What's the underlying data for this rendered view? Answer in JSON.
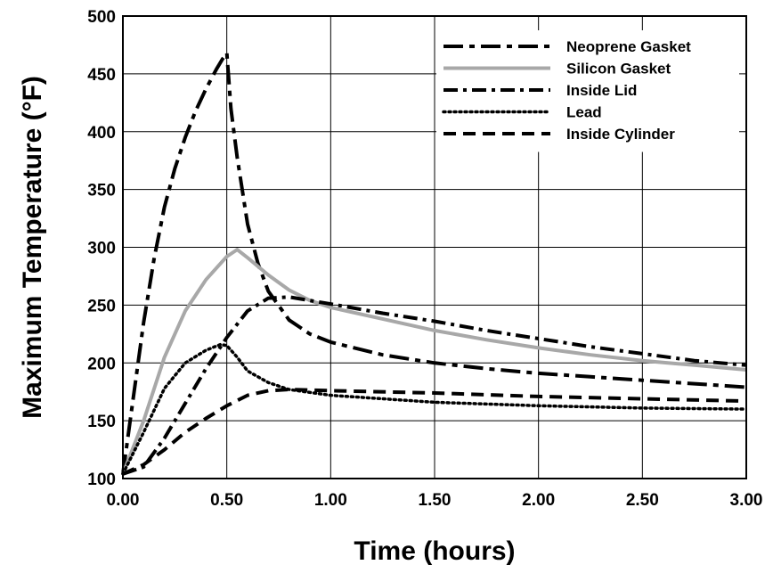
{
  "chart_data": {
    "type": "line",
    "xlabel": "Time (hours)",
    "ylabel": "Maximum Temperature (°F)",
    "xlim": [
      0,
      3
    ],
    "ylim": [
      100,
      500
    ],
    "xticks": [
      0,
      0.5,
      1.0,
      1.5,
      2.0,
      2.5,
      3.0
    ],
    "xtick_labels": [
      "0.00",
      "0.50",
      "1.00",
      "1.50",
      "2.00",
      "2.50",
      "3.00"
    ],
    "yticks": [
      100,
      150,
      200,
      250,
      300,
      350,
      400,
      450,
      500
    ],
    "ytick_labels": [
      "100",
      "150",
      "200",
      "250",
      "300",
      "350",
      "400",
      "450",
      "500"
    ],
    "grid": true,
    "legend_position": "top-right",
    "series": [
      {
        "name": "Neoprene Gasket",
        "color": "#000000",
        "style": "long-dash",
        "points": [
          [
            0,
            104
          ],
          [
            0.05,
            170
          ],
          [
            0.1,
            235
          ],
          [
            0.15,
            290
          ],
          [
            0.2,
            335
          ],
          [
            0.25,
            368
          ],
          [
            0.3,
            395
          ],
          [
            0.35,
            418
          ],
          [
            0.4,
            437
          ],
          [
            0.45,
            454
          ],
          [
            0.48,
            463
          ],
          [
            0.5,
            468
          ],
          [
            0.52,
            420
          ],
          [
            0.55,
            378
          ],
          [
            0.6,
            320
          ],
          [
            0.65,
            286
          ],
          [
            0.7,
            262
          ],
          [
            0.8,
            237
          ],
          [
            0.9,
            225
          ],
          [
            1.0,
            218
          ],
          [
            1.25,
            207
          ],
          [
            1.5,
            200
          ],
          [
            1.75,
            195
          ],
          [
            2.0,
            191
          ],
          [
            2.25,
            188
          ],
          [
            2.5,
            185
          ],
          [
            2.75,
            182
          ],
          [
            3.0,
            179
          ]
        ]
      },
      {
        "name": "Silicon Gasket",
        "color": "#a8a8a8",
        "style": "solid",
        "points": [
          [
            0,
            104
          ],
          [
            0.1,
            150
          ],
          [
            0.2,
            205
          ],
          [
            0.3,
            245
          ],
          [
            0.4,
            272
          ],
          [
            0.5,
            292
          ],
          [
            0.55,
            298
          ],
          [
            0.6,
            291
          ],
          [
            0.7,
            276
          ],
          [
            0.8,
            263
          ],
          [
            0.9,
            254
          ],
          [
            1.0,
            248
          ],
          [
            1.25,
            238
          ],
          [
            1.5,
            228
          ],
          [
            1.75,
            220
          ],
          [
            2.0,
            213
          ],
          [
            2.25,
            207
          ],
          [
            2.5,
            202
          ],
          [
            2.75,
            198
          ],
          [
            3.0,
            194
          ]
        ]
      },
      {
        "name": "Inside Lid",
        "color": "#000000",
        "style": "dash-dot",
        "points": [
          [
            0,
            104
          ],
          [
            0.1,
            110
          ],
          [
            0.2,
            135
          ],
          [
            0.3,
            165
          ],
          [
            0.4,
            195
          ],
          [
            0.5,
            222
          ],
          [
            0.6,
            245
          ],
          [
            0.7,
            256
          ],
          [
            0.8,
            257
          ],
          [
            1.0,
            251
          ],
          [
            1.25,
            243
          ],
          [
            1.5,
            236
          ],
          [
            1.75,
            228
          ],
          [
            2.0,
            221
          ],
          [
            2.25,
            214
          ],
          [
            2.5,
            208
          ],
          [
            2.75,
            202
          ],
          [
            3.0,
            198
          ]
        ]
      },
      {
        "name": "Lead",
        "color": "#000000",
        "style": "dotted",
        "points": [
          [
            0,
            104
          ],
          [
            0.1,
            140
          ],
          [
            0.2,
            178
          ],
          [
            0.3,
            200
          ],
          [
            0.4,
            211
          ],
          [
            0.47,
            216
          ],
          [
            0.5,
            215
          ],
          [
            0.55,
            205
          ],
          [
            0.6,
            193
          ],
          [
            0.7,
            183
          ],
          [
            0.8,
            177
          ],
          [
            1.0,
            172
          ],
          [
            1.5,
            166
          ],
          [
            2.0,
            163
          ],
          [
            2.5,
            161
          ],
          [
            3.0,
            160
          ]
        ]
      },
      {
        "name": "Inside Cylinder",
        "color": "#000000",
        "style": "dash",
        "points": [
          [
            0,
            104
          ],
          [
            0.1,
            112
          ],
          [
            0.2,
            125
          ],
          [
            0.3,
            140
          ],
          [
            0.4,
            152
          ],
          [
            0.5,
            163
          ],
          [
            0.6,
            172
          ],
          [
            0.7,
            176
          ],
          [
            0.8,
            177
          ],
          [
            1.0,
            176
          ],
          [
            1.5,
            174
          ],
          [
            2.0,
            171
          ],
          [
            2.5,
            169
          ],
          [
            3.0,
            167
          ]
        ]
      }
    ]
  }
}
